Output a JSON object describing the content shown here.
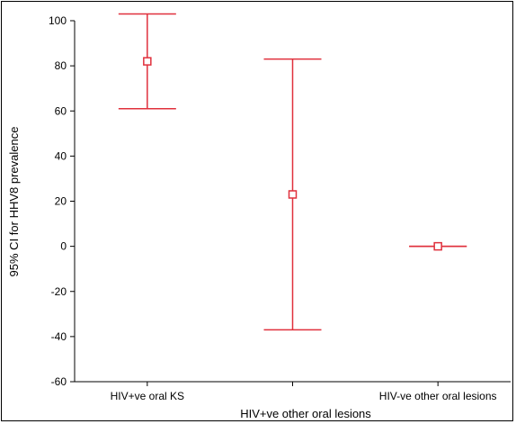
{
  "chart_data": {
    "type": "errorbar",
    "title": "",
    "xlabel": "HIV+ve other oral lesions",
    "ylabel": "95% CI for HHV8 prevalence",
    "ylim": [
      -60,
      100
    ],
    "yticks": [
      100,
      80,
      60,
      40,
      20,
      0,
      -20,
      -40,
      -60
    ],
    "categories": [
      "HIV+ve oral KS",
      "HIV+ve other oral lesions",
      "HIV-ve other oral lesions"
    ],
    "category_tick_labels": [
      "HIV+ve oral KS",
      "",
      "HIV-ve other oral lesions"
    ],
    "series": [
      {
        "points": [
          {
            "category": "HIV+ve oral KS",
            "mean": 82,
            "lower": 61,
            "upper": 103
          },
          {
            "category": "HIV+ve other oral lesions",
            "mean": 23,
            "lower": -37,
            "upper": 83
          },
          {
            "category": "HIV-ve other oral lesions",
            "mean": 0,
            "lower": 0,
            "upper": 0
          }
        ]
      }
    ],
    "grid": false,
    "color": "#e0303c"
  }
}
